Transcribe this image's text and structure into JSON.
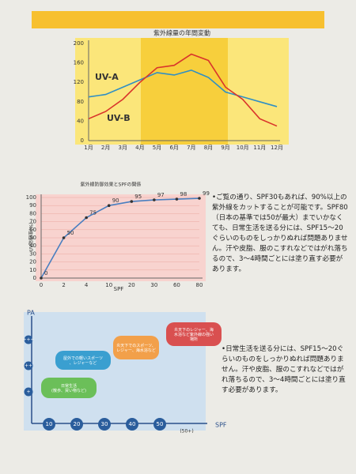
{
  "chart_data": [
    {
      "type": "line",
      "title": "紫外線量の年間変動",
      "categories": [
        "1月",
        "2月",
        "3月",
        "4月",
        "5月",
        "6月",
        "7月",
        "8月",
        "9月",
        "10月",
        "11月",
        "12月"
      ],
      "series": [
        {
          "name": "UV-A",
          "color": "#2f8fc4",
          "values": [
            90,
            95,
            110,
            125,
            140,
            135,
            145,
            130,
            100,
            90,
            80,
            70
          ]
        },
        {
          "name": "UV-B",
          "color": "#d9342b",
          "values": [
            45,
            60,
            85,
            120,
            150,
            155,
            178,
            165,
            110,
            85,
            45,
            30
          ]
        }
      ],
      "ylim": [
        0,
        200
      ],
      "yticks": [
        0,
        40,
        80,
        120,
        160,
        200
      ]
    },
    {
      "type": "line",
      "title": "紫外線防御効果とSPFの関係",
      "xlabel": "SPF",
      "ylabel": "UV防御率(%)",
      "categories": [
        "0",
        "2",
        "4",
        "10",
        "20",
        "30",
        "60",
        "80"
      ],
      "series": [
        {
          "name": null,
          "color": "#4a7fc0",
          "values": [
            0,
            50,
            75,
            90,
            95,
            97,
            98,
            99
          ]
        }
      ],
      "ylim": [
        0,
        100
      ],
      "yticks": [
        0,
        10,
        20,
        30,
        40,
        50,
        60,
        70,
        80,
        90,
        100
      ],
      "grid": true
    }
  ],
  "diagram": {
    "ylabel": "PA",
    "yticks": [
      "+",
      "++",
      "+++"
    ],
    "xticks": [
      "10",
      "20",
      "30",
      "40",
      "50"
    ],
    "xextra": "(50+)",
    "xlabel": "SPF",
    "nodes": [
      "日常生活\n(散歩、買い物など)",
      "屋外での軽いスポーツ、レジャーなど",
      "炎天下でのスポーツ、レジャー、海水浴など",
      "炎天下のレジャー、海水浴など紫外線の強い場所"
    ]
  },
  "paragraphs": [
    "•ご覧の通り、SPF30もあれば、90%以上の紫外線をカットすることが可能です。SPF80（日本の基準では50が最大）までいかなくても、日常生活を送る分には、SPF15～20ぐらいのものをしっかりぬれば問題ありません。汗や皮脂、服のこすれなどではがれ落ちるので、3～4時間ごとには塗り直す必要があります。",
    "•日常生活を送る分には、SPF15～20ぐらいのものをしっかりぬれば問題ありません。汗や皮脂、服のこすれなどではがれ落ちるので、3～4時間ごとには塗り直す必要があります。"
  ]
}
